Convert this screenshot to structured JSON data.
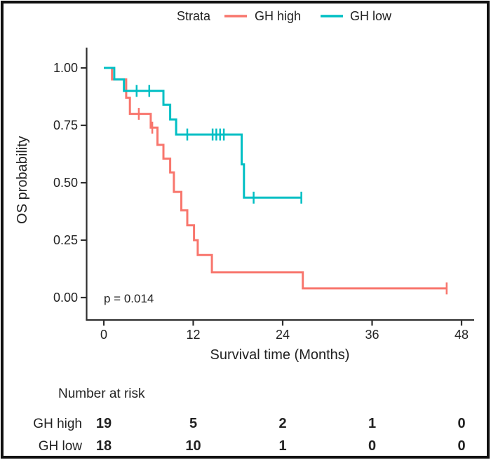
{
  "legend": {
    "title": "Strata",
    "items": [
      {
        "label": "GH high",
        "color": "#F8766D"
      },
      {
        "label": "GH low",
        "color": "#00BFC4"
      }
    ]
  },
  "axes": {
    "y_label": "OS probability",
    "x_label": "Survival time (Months)",
    "y_ticks": [
      "1.00",
      "0.75",
      "0.50",
      "0.25",
      "0.00"
    ],
    "x_ticks": [
      "0",
      "12",
      "24",
      "36",
      "48"
    ]
  },
  "annotation": {
    "p_value": "p = 0.014"
  },
  "risk_table": {
    "title": "Number at risk",
    "rows": [
      {
        "label": "GH high",
        "color": "#F8766D",
        "counts": [
          "19",
          "5",
          "2",
          "1",
          "0"
        ]
      },
      {
        "label": "GH low",
        "color": "#00BFC4",
        "counts": [
          "18",
          "10",
          "1",
          "0",
          "0"
        ]
      }
    ]
  },
  "chart_data": {
    "type": "line",
    "subtype": "kaplan-meier-step",
    "title": "",
    "xlabel": "Survival time (Months)",
    "ylabel": "OS probability",
    "xlim": [
      0,
      48
    ],
    "ylim": [
      0,
      1
    ],
    "grid": false,
    "legend_position": "top",
    "p_value": 0.014,
    "series": [
      {
        "name": "GH high",
        "color": "#F8766D",
        "n": 19,
        "steps": [
          [
            0,
            1.0
          ],
          [
            1.1,
            0.95
          ],
          [
            3.0,
            0.87
          ],
          [
            3.5,
            0.8
          ],
          [
            6.3,
            0.74
          ],
          [
            7.2,
            0.665
          ],
          [
            8.0,
            0.605
          ],
          [
            8.9,
            0.545
          ],
          [
            9.4,
            0.46
          ],
          [
            10.4,
            0.38
          ],
          [
            11.2,
            0.315
          ],
          [
            12.1,
            0.25
          ],
          [
            12.6,
            0.185
          ],
          [
            14.5,
            0.11
          ],
          [
            26.7,
            0.04
          ]
        ],
        "end_month": 46,
        "censors": [
          [
            4.7,
            0.8
          ],
          [
            6.5,
            0.74
          ],
          [
            46,
            0.04
          ]
        ],
        "at_risk": [
          19,
          5,
          2,
          1,
          0
        ]
      },
      {
        "name": "GH low",
        "color": "#00BFC4",
        "n": 18,
        "steps": [
          [
            0,
            1.0
          ],
          [
            1.4,
            0.95
          ],
          [
            2.7,
            0.9
          ],
          [
            8.0,
            0.84
          ],
          [
            8.9,
            0.775
          ],
          [
            9.7,
            0.71
          ],
          [
            18.5,
            0.58
          ],
          [
            18.8,
            0.435
          ]
        ],
        "end_month": 26.5,
        "censors": [
          [
            4.4,
            0.9
          ],
          [
            6.1,
            0.9
          ],
          [
            11.2,
            0.71
          ],
          [
            14.6,
            0.71
          ],
          [
            15.1,
            0.71
          ],
          [
            15.6,
            0.71
          ],
          [
            16.1,
            0.71
          ],
          [
            20.1,
            0.435
          ],
          [
            26.5,
            0.435
          ]
        ],
        "at_risk": [
          18,
          10,
          1,
          0,
          0
        ]
      }
    ]
  }
}
